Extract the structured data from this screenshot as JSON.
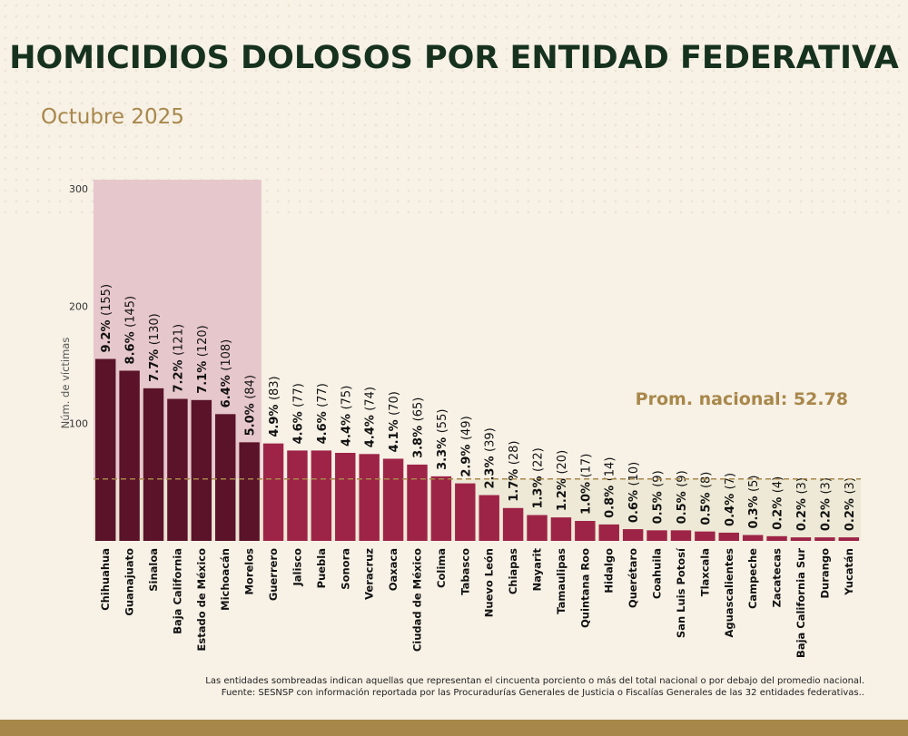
{
  "header": {
    "title": "HOMICIDIOS DOLOSOS POR ENTIDAD FEDERATIVA",
    "subtitle": "Octubre 2025"
  },
  "footnote": {
    "line1": "Las entidades sombreadas indican aquellas que representan el cincuenta porciento o más del total nacional o por debajo del promedio nacional.",
    "line2": "Fuente: SESNSP con información reportada por las Procuradurías Generales de Justicia o Fiscalías Generales de las 32 entidades federativas.."
  },
  "colors": {
    "dark_bar": "#5a1329",
    "bar": "#9e2447",
    "highlight_band": "#e6c7cc",
    "average_band": "#ebe7d2",
    "average_line": "#a8874a",
    "average_text": "#a8874a"
  },
  "chart_data": {
    "type": "bar",
    "ylabel": "Núm. de víctimas",
    "ylim": [
      0,
      300
    ],
    "yticks": [
      100,
      200,
      300
    ],
    "average": {
      "label": "Prom. nacional: 52.78",
      "value": 52.78
    },
    "highlight_group_count": 7,
    "categories": [
      "Chihuahua",
      "Guanajuato",
      "Sinaloa",
      "Baja California",
      "Estado de México",
      "Michoacán",
      "Morelos",
      "Guerrero",
      "Jalisco",
      "Puebla",
      "Sonora",
      "Veracruz",
      "Oaxaca",
      "Ciudad de México",
      "Colima",
      "Tabasco",
      "Nuevo León",
      "Chiapas",
      "Nayarit",
      "Tamaulipas",
      "Quintana Roo",
      "Hidalgo",
      "Querétaro",
      "Coahuila",
      "San Luis Potosí",
      "Tlaxcala",
      "Aguascalientes",
      "Campeche",
      "Zacatecas",
      "Baja California Sur",
      "Durango",
      "Yucatán"
    ],
    "values": [
      155,
      145,
      130,
      121,
      120,
      108,
      84,
      83,
      77,
      77,
      75,
      74,
      70,
      65,
      55,
      49,
      39,
      28,
      22,
      20,
      17,
      14,
      10,
      9,
      9,
      8,
      7,
      5,
      4,
      3,
      3,
      3
    ],
    "percent_labels": [
      "9.2%",
      "8.6%",
      "7.7%",
      "7.2%",
      "7.1%",
      "6.4%",
      "5.0%",
      "4.9%",
      "4.6%",
      "4.6%",
      "4.4%",
      "4.4%",
      "4.1%",
      "3.8%",
      "3.3%",
      "2.9%",
      "2.3%",
      "1.7%",
      "1.3%",
      "1.2%",
      "1.0%",
      "0.8%",
      "0.6%",
      "0.5%",
      "0.5%",
      "0.5%",
      "0.4%",
      "0.3%",
      "0.2%",
      "0.2%",
      "0.2%",
      "0.2%"
    ],
    "count_labels": [
      "(155)",
      "(145)",
      "(130)",
      "(121)",
      "(120)",
      "(108)",
      "(84)",
      "(83)",
      "(77)",
      "(77)",
      "(75)",
      "(74)",
      "(70)",
      "(65)",
      "(55)",
      "(49)",
      "(39)",
      "(28)",
      "(22)",
      "(20)",
      "(17)",
      "(14)",
      "(10)",
      "(9)",
      "(9)",
      "(8)",
      "(7)",
      "(5)",
      "(4)",
      "(3)",
      "(3)",
      "(3)"
    ]
  }
}
